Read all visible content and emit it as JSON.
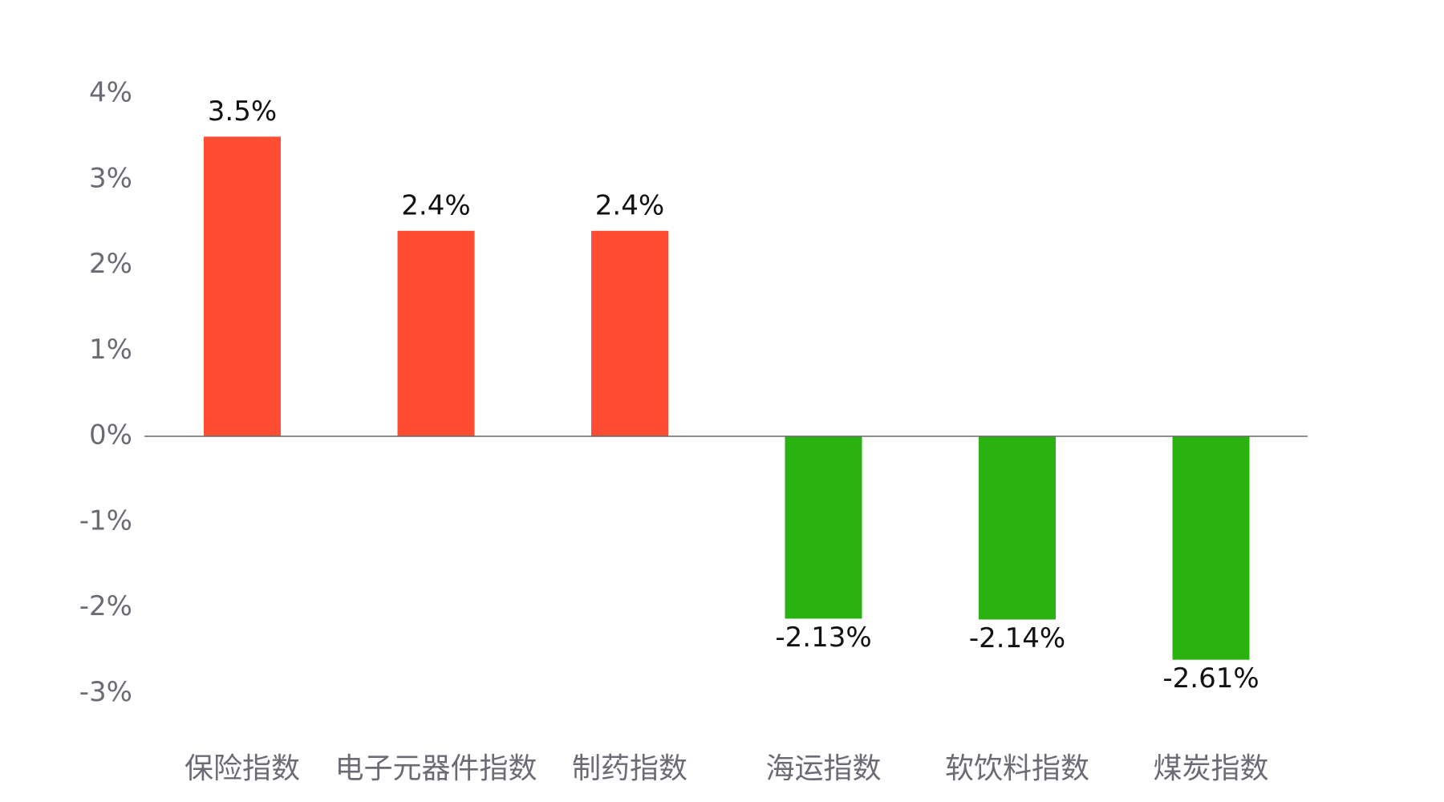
{
  "chart_data": {
    "type": "bar",
    "title": "",
    "xlabel": "",
    "ylabel": "",
    "categories": [
      "保险指数",
      "电子元器件指数",
      "制药指数",
      "海运指数",
      "软饮料指数",
      "煤炭指数"
    ],
    "values": [
      3.5,
      2.4,
      2.4,
      -2.13,
      -2.14,
      -2.61
    ],
    "data_labels": [
      "3.5%",
      "2.4%",
      "2.4%",
      "-2.13%",
      "-2.14%",
      "-2.61%"
    ],
    "ylim": [
      -3,
      4
    ],
    "yticks": [
      4,
      3,
      2,
      1,
      0,
      -1,
      -2,
      -3
    ],
    "ytick_labels": [
      "4%",
      "3%",
      "2%",
      "1%",
      "0%",
      "-1%",
      "-2%",
      "-3%"
    ],
    "grid": false,
    "legend": "none",
    "colors": {
      "positive": "#ff4d33",
      "negative": "#2ab310",
      "axis": "#666666"
    }
  }
}
